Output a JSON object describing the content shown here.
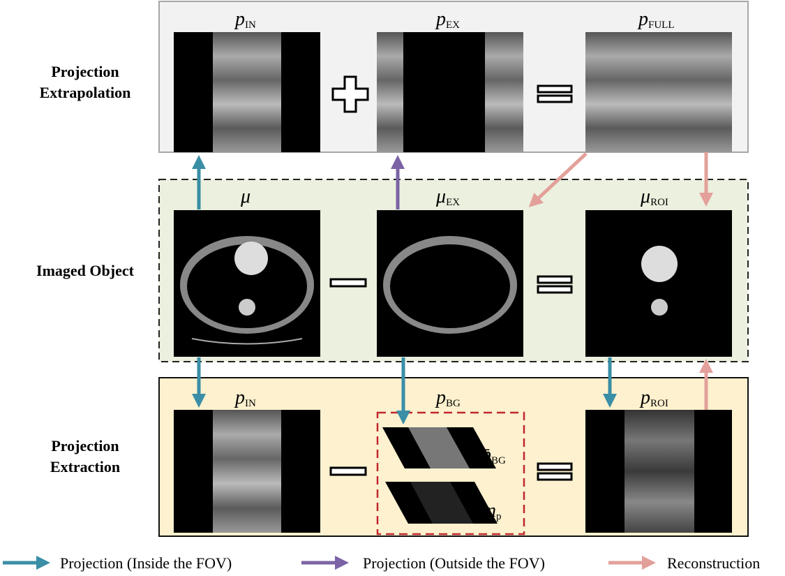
{
  "rows": {
    "top": {
      "label_line1": "Projection",
      "label_line2": "Extrapolation"
    },
    "middle": {
      "label": "Imaged Object"
    },
    "bottom": {
      "label_line1": "Projection",
      "label_line2": "Extraction"
    }
  },
  "images": {
    "top": [
      {
        "symbol": "p",
        "sub": "IN"
      },
      {
        "symbol": "p",
        "sub": "EX"
      },
      {
        "symbol": "p",
        "sub": "FULL"
      }
    ],
    "middle": [
      {
        "symbol": "μ",
        "sub": ""
      },
      {
        "symbol": "μ",
        "sub": "EX"
      },
      {
        "symbol": "μ",
        "sub": "ROI"
      }
    ],
    "bottom": [
      {
        "symbol": "p",
        "sub": "IN"
      },
      {
        "symbol": "p",
        "sub": "BG"
      },
      {
        "symbol": "p",
        "sub": "ROI"
      }
    ],
    "bg_parts": [
      {
        "symbol": "p̄",
        "sub": "BG"
      },
      {
        "symbol": "n",
        "sub": "p"
      }
    ]
  },
  "operators": {
    "top": [
      "+",
      "="
    ],
    "middle": [
      "−",
      "="
    ],
    "bottom": [
      "−",
      "="
    ]
  },
  "legend": [
    {
      "label": "Projection (Inside the FOV)",
      "color": "#3a8ea6"
    },
    {
      "label": "Projection (Outside the FOV)",
      "color": "#7b63a5"
    },
    {
      "label": "Reconstruction",
      "color": "#e3a09a"
    }
  ],
  "colors": {
    "top_panel": "#f2f2f2",
    "middle_panel": "#ebf1de",
    "bottom_panel": "#fdf1cf",
    "bg_box": "#c0272d"
  }
}
